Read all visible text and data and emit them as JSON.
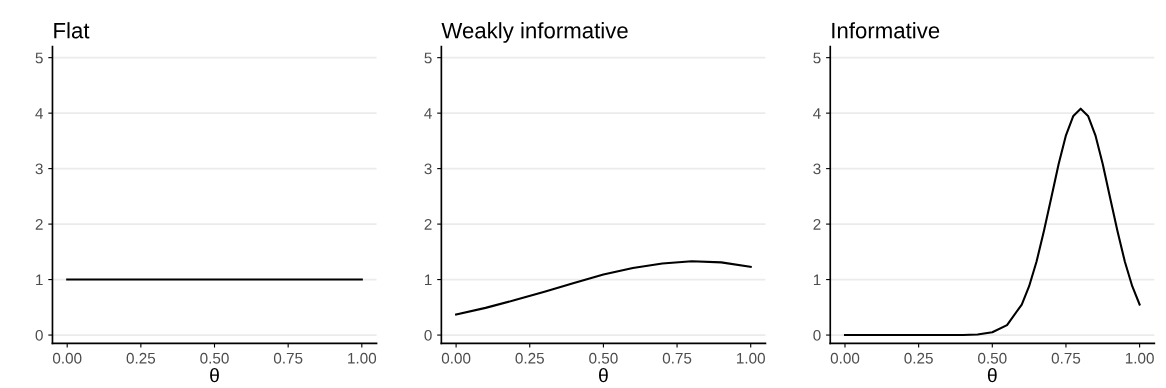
{
  "chart_data": [
    {
      "type": "line",
      "title": "Flat",
      "xlabel": "θ",
      "x": [
        0,
        1
      ],
      "series": [
        {
          "color": "#000000",
          "values": [
            1,
            1
          ]
        }
      ],
      "xlim": [
        -0.05,
        1.05
      ],
      "ylim": [
        -0.15,
        5.2
      ],
      "xticks": [
        {
          "value": 0,
          "label": "0.00"
        },
        {
          "value": 0.25,
          "label": "0.25"
        },
        {
          "value": 0.5,
          "label": "0.50"
        },
        {
          "value": 0.75,
          "label": "0.75"
        },
        {
          "value": 1,
          "label": "1.00"
        }
      ],
      "yticks": [
        0,
        1,
        2,
        3,
        4,
        5
      ],
      "grid": "y",
      "legend": false
    },
    {
      "type": "line",
      "title": "Weakly informative",
      "xlabel": "θ",
      "x": [
        0,
        0.1,
        0.2,
        0.3,
        0.4,
        0.5,
        0.6,
        0.7,
        0.8,
        0.9,
        1.0
      ],
      "series": [
        {
          "color": "#000000",
          "values": [
            0.37,
            0.49,
            0.63,
            0.78,
            0.94,
            1.09,
            1.21,
            1.29,
            1.33,
            1.31,
            1.23
          ]
        }
      ],
      "xlim": [
        -0.05,
        1.05
      ],
      "ylim": [
        -0.15,
        5.2
      ],
      "xticks": [
        {
          "value": 0,
          "label": "0.00"
        },
        {
          "value": 0.25,
          "label": "0.25"
        },
        {
          "value": 0.5,
          "label": "0.50"
        },
        {
          "value": 0.75,
          "label": "0.75"
        },
        {
          "value": 1,
          "label": "1.00"
        }
      ],
      "yticks": [
        0,
        1,
        2,
        3,
        4,
        5
      ],
      "grid": "y",
      "legend": false
    },
    {
      "type": "line",
      "title": "Informative",
      "xlabel": "θ",
      "x": [
        0,
        0.1,
        0.2,
        0.3,
        0.4,
        0.45,
        0.5,
        0.55,
        0.6,
        0.625,
        0.65,
        0.675,
        0.7,
        0.725,
        0.75,
        0.775,
        0.8,
        0.825,
        0.85,
        0.875,
        0.9,
        0.925,
        0.95,
        0.975,
        1.0
      ],
      "series": [
        {
          "color": "#000000",
          "values": [
            0,
            0,
            0,
            0,
            0,
            0.01,
            0.05,
            0.18,
            0.55,
            0.88,
            1.32,
            1.87,
            2.47,
            3.08,
            3.6,
            3.95,
            4.08,
            3.95,
            3.6,
            3.08,
            2.47,
            1.87,
            1.32,
            0.88,
            0.55
          ]
        }
      ],
      "xlim": [
        -0.05,
        1.05
      ],
      "ylim": [
        -0.15,
        5.2
      ],
      "xticks": [
        {
          "value": 0,
          "label": "0.00"
        },
        {
          "value": 0.25,
          "label": "0.25"
        },
        {
          "value": 0.5,
          "label": "0.50"
        },
        {
          "value": 0.75,
          "label": "0.75"
        },
        {
          "value": 1,
          "label": "1.00"
        }
      ],
      "yticks": [
        0,
        1,
        2,
        3,
        4,
        5
      ],
      "grid": "y",
      "legend": false
    }
  ]
}
